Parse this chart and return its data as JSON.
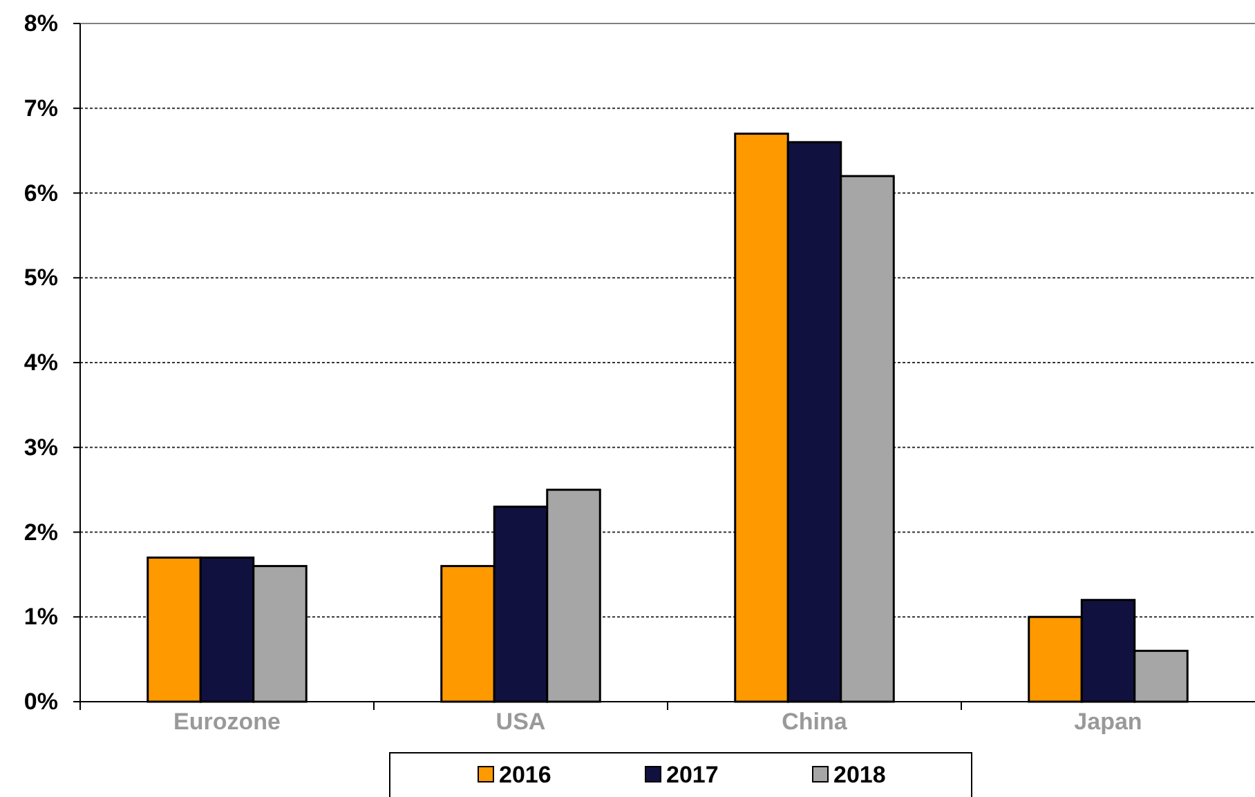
{
  "chart_data": {
    "type": "bar",
    "categories": [
      "Eurozone",
      "USA",
      "China",
      "Japan"
    ],
    "series": [
      {
        "name": "2016",
        "color": "#ff9900",
        "values": [
          1.7,
          1.6,
          6.7,
          1.0
        ]
      },
      {
        "name": "2017",
        "color": "#111140",
        "values": [
          1.7,
          2.3,
          6.6,
          1.2
        ]
      },
      {
        "name": "2018",
        "color": "#a6a6a6",
        "values": [
          1.6,
          2.5,
          6.2,
          0.6
        ]
      }
    ],
    "ylim": [
      0,
      8
    ],
    "yticks": [
      {
        "value": 0,
        "label": "0%"
      },
      {
        "value": 1,
        "label": "1%"
      },
      {
        "value": 2,
        "label": "2%"
      },
      {
        "value": 3,
        "label": "3%"
      },
      {
        "value": 4,
        "label": "4%"
      },
      {
        "value": 5,
        "label": "5%"
      },
      {
        "value": 6,
        "label": "6%"
      },
      {
        "value": 7,
        "label": "7%"
      },
      {
        "value": 8,
        "label": "8%"
      }
    ],
    "grid": "y",
    "legend": "bottom"
  }
}
